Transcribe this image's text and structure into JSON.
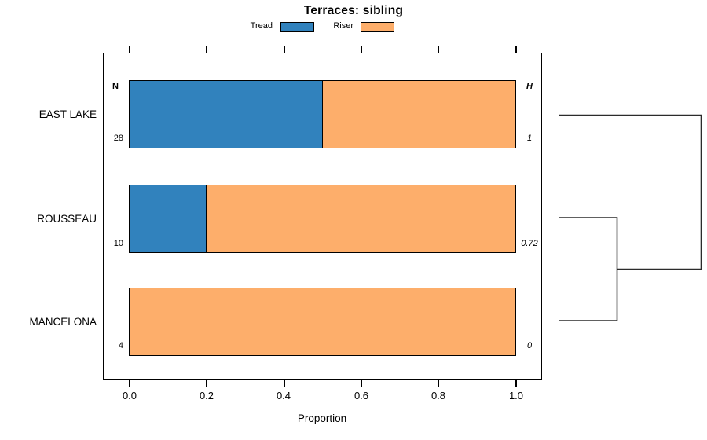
{
  "title": "Terraces: sibling",
  "legend": {
    "items": [
      {
        "label": "Tread",
        "color": "#3182BD"
      },
      {
        "label": "Riser",
        "color": "#FDAE6B"
      }
    ]
  },
  "columns": {
    "n_header": "N",
    "h_header": "H"
  },
  "xaxis": {
    "label": "Proportion",
    "ticks": [
      "0.0",
      "0.2",
      "0.4",
      "0.6",
      "0.8",
      "1.0"
    ]
  },
  "rows": [
    {
      "label": "EAST LAKE",
      "n": "28",
      "h": "1",
      "tread": 0.5,
      "riser": 0.5
    },
    {
      "label": "ROUSSEAU",
      "n": "10",
      "h": "0.72",
      "tread": 0.2,
      "riser": 0.8
    },
    {
      "label": "MANCELONA",
      "n": "4",
      "h": "0",
      "tread": 0.0,
      "riser": 1.0
    }
  ],
  "chart_data": {
    "type": "bar",
    "subtype": "horizontal-stacked-proportion",
    "title": "Terraces: sibling",
    "categories": [
      "EAST LAKE",
      "ROUSSEAU",
      "MANCELONA"
    ],
    "series": [
      {
        "name": "Tread",
        "color": "#3182BD",
        "values": [
          0.5,
          0.2,
          0.0
        ]
      },
      {
        "name": "Riser",
        "color": "#FDAE6B",
        "values": [
          0.5,
          0.8,
          1.0
        ]
      }
    ],
    "n_values": [
      28,
      10,
      4
    ],
    "h_values": [
      "1",
      "0.72",
      "0"
    ],
    "xlabel": "Proportion",
    "ylabel": "",
    "xlim": [
      0.0,
      1.0
    ],
    "xticks": [
      0.0,
      0.2,
      0.4,
      0.6,
      0.8,
      1.0
    ],
    "grid": false,
    "legend_position": "top",
    "bar_border_color": "#000000",
    "dendrogram": {
      "side": "right",
      "merges": [
        {
          "members": [
            "ROUSSEAU",
            "MANCELONA"
          ],
          "relative_height": 0.4
        },
        {
          "members": [
            "EAST LAKE",
            "ROUSSEAU+MANCELONA"
          ],
          "relative_height": 1.0
        }
      ]
    }
  }
}
